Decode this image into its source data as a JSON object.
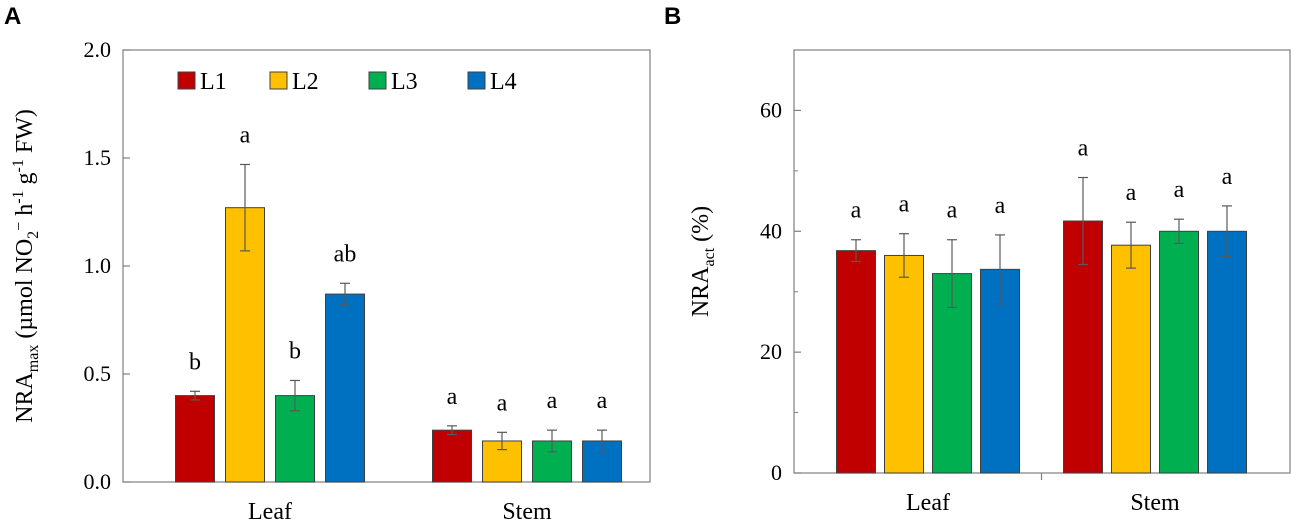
{
  "chart_data": [
    {
      "panel_label": "A",
      "type": "bar",
      "title": "",
      "ylabel_main": "NRA",
      "ylabel_subscript": "max",
      "ylabel_unit": "(µmol NO",
      "ylabel_unit_sub": "2",
      "ylabel_unit_sup": "−",
      "ylabel_rest1": " h",
      "ylabel_sup1": "-1",
      "ylabel_rest2": " g",
      "ylabel_sup2": "-1",
      "ylabel_rest3": " FW)",
      "xlabel": "",
      "categories": [
        "Leaf",
        "Stem"
      ],
      "ylim": [
        0,
        2.0
      ],
      "yticks": [
        "0.0",
        "0.5",
        "1.0",
        "1.5",
        "2.0"
      ],
      "ytick_values": [
        0,
        0.5,
        1.0,
        1.5,
        2.0
      ],
      "legend_position": "top-left",
      "series": [
        {
          "name": "L1",
          "color": "#c00000",
          "values": [
            0.4,
            0.24
          ],
          "errors": [
            0.02,
            0.02
          ],
          "sig": [
            "b",
            "a"
          ]
        },
        {
          "name": "L2",
          "color": "#ffc000",
          "values": [
            1.27,
            0.19
          ],
          "errors": [
            0.2,
            0.04
          ],
          "sig": [
            "a",
            "a"
          ]
        },
        {
          "name": "L3",
          "color": "#00b050",
          "values": [
            0.4,
            0.19
          ],
          "errors": [
            0.07,
            0.05
          ],
          "sig": [
            "b",
            "a"
          ]
        },
        {
          "name": "L4",
          "color": "#0070c0",
          "values": [
            0.87,
            0.19
          ],
          "errors": [
            0.05,
            0.05
          ],
          "sig": [
            "ab",
            "a"
          ]
        }
      ]
    },
    {
      "panel_label": "B",
      "type": "bar",
      "title": "",
      "ylabel_main": "NRA",
      "ylabel_subscript": "act",
      "ylabel_unit": " (%)",
      "xlabel": "",
      "categories": [
        "Leaf",
        "Stem"
      ],
      "ylim": [
        0,
        70
      ],
      "yticks": [
        "0",
        "20",
        "40",
        "60"
      ],
      "ytick_values": [
        0,
        20,
        40,
        60
      ],
      "series": [
        {
          "name": "L1",
          "color": "#c00000",
          "values": [
            36.8,
            41.7
          ],
          "errors": [
            1.8,
            7.2
          ],
          "sig": [
            "a",
            "a"
          ]
        },
        {
          "name": "L2",
          "color": "#ffc000",
          "values": [
            36.0,
            37.7
          ],
          "errors": [
            3.6,
            3.8
          ],
          "sig": [
            "a",
            "a"
          ]
        },
        {
          "name": "L3",
          "color": "#00b050",
          "values": [
            33.0,
            40.0
          ],
          "errors": [
            5.6,
            2.0
          ],
          "sig": [
            "a",
            "a"
          ]
        },
        {
          "name": "L4",
          "color": "#0070c0",
          "values": [
            33.7,
            40.0
          ],
          "errors": [
            5.7,
            4.2
          ],
          "sig": [
            "a",
            "a"
          ]
        }
      ]
    }
  ]
}
